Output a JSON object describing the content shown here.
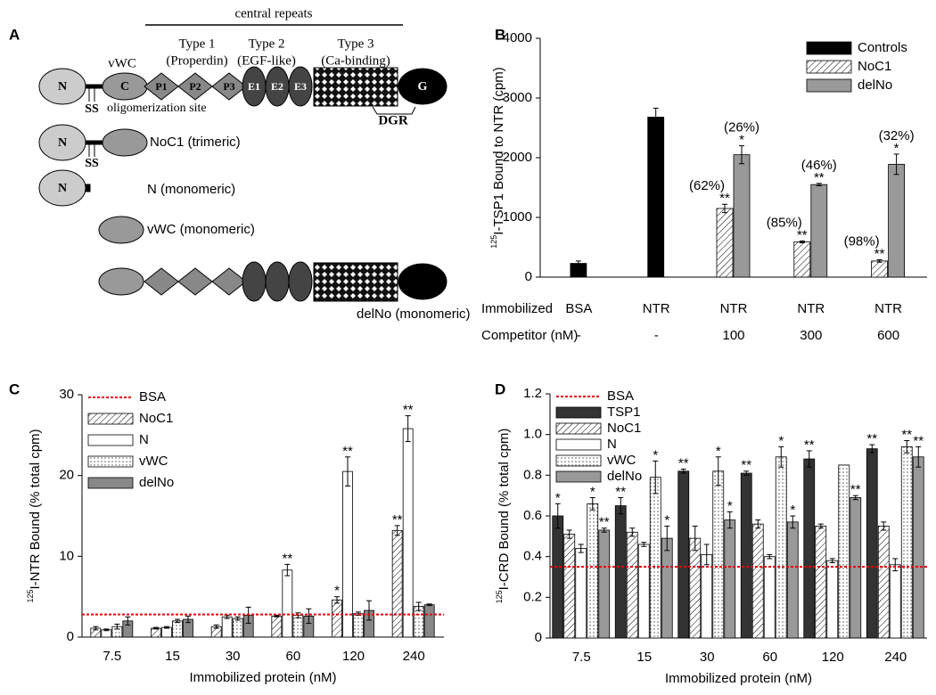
{
  "panels": {
    "a": "A",
    "b": "B",
    "c": "C",
    "d": "D"
  },
  "diagram": {
    "central_repeats": "central repeats",
    "vwc": "vWC",
    "type1": "Type 1",
    "type1_sub": "(Properdin)",
    "type2": "Type 2",
    "type2_sub": "(EGF-like)",
    "type3": "Type 3",
    "type3_sub": "(Ca-binding)",
    "domains": [
      "N",
      "C",
      "P1",
      "P2",
      "P3",
      "E1",
      "E2",
      "E3",
      "G"
    ],
    "ss": "SS",
    "oligomerization": "oligomerization site",
    "dgr": "DGR",
    "constructs": [
      "NoC1 (trimeric)",
      "N (monomeric)",
      "vWC (monomeric)",
      "delNo (monomeric)"
    ]
  },
  "chart_data": [
    {
      "type": "bar",
      "ylabel_sup": "125",
      "ylabel": "I-TSP1 Bound  to NTR (cpm)",
      "categories": [
        "BSA",
        "NTR",
        "NTR",
        "NTR",
        "NTR"
      ],
      "category_row_label": "Immobilized",
      "competitor_row_label": "Competitor (nM)",
      "competitor": [
        "-",
        "-",
        "100",
        "300",
        "600"
      ],
      "ylim": [
        0,
        4000
      ],
      "yticks": [
        0,
        1000,
        2000,
        3000,
        4000
      ],
      "legend": "upper right",
      "series": [
        {
          "name": "Controls",
          "color": "#000000",
          "pattern": "solid",
          "values": [
            230,
            2680,
            null,
            null,
            null
          ],
          "errors": [
            40,
            150,
            null,
            null,
            null
          ]
        },
        {
          "name": "NoC1",
          "color": "#ffffff",
          "pattern": "hatch",
          "values": [
            null,
            null,
            1150,
            590,
            270
          ],
          "errors": [
            null,
            null,
            70,
            15,
            20
          ],
          "significance": [
            null,
            null,
            "**",
            "**",
            "**"
          ],
          "percent_labels": [
            null,
            null,
            "(62%)",
            "(85%)",
            "(98%)"
          ]
        },
        {
          "name": "delNo",
          "color": "#999999",
          "pattern": "solid",
          "values": [
            null,
            null,
            2050,
            1550,
            1890
          ],
          "errors": [
            null,
            null,
            150,
            20,
            170
          ],
          "significance": [
            null,
            null,
            "*",
            "**",
            "*"
          ],
          "percent_labels": [
            null,
            null,
            "(26%)",
            "(46%)",
            "(32%)"
          ]
        }
      ]
    },
    {
      "type": "bar",
      "ylabel_sup": "125",
      "ylabel": "I-NTR Bound (% total cpm)",
      "xlabel": "Immobilized protein (nM)",
      "categories": [
        "7.5",
        "15",
        "30",
        "60",
        "120",
        "240"
      ],
      "ylim": [
        0,
        30
      ],
      "yticks": [
        0,
        10,
        20,
        30
      ],
      "legend": "upper left",
      "reference_line": {
        "name": "BSA",
        "value": 2.8,
        "color": "#e8000b"
      },
      "series": [
        {
          "name": "NoC1",
          "color": "#ffffff",
          "pattern": "hatch",
          "values": [
            1.1,
            1.1,
            1.3,
            2.6,
            4.6,
            13.2
          ],
          "errors": [
            0.2,
            0.1,
            0.2,
            0.1,
            0.4,
            0.6
          ],
          "significance": [
            null,
            null,
            null,
            null,
            "*",
            "**"
          ]
        },
        {
          "name": "N",
          "color": "#ffffff",
          "pattern": "solid",
          "values": [
            0.9,
            1.2,
            2.5,
            8.3,
            20.5,
            25.8
          ],
          "errors": [
            0.1,
            0.1,
            0.2,
            0.7,
            1.8,
            1.6
          ],
          "significance": [
            null,
            null,
            null,
            "**",
            "**",
            "**"
          ]
        },
        {
          "name": "vWC",
          "color": "#ffffff",
          "pattern": "dots",
          "values": [
            1.3,
            2.0,
            2.3,
            2.7,
            2.9,
            3.8
          ],
          "errors": [
            0.3,
            0.2,
            0.2,
            0.3,
            0.2,
            0.5
          ]
        },
        {
          "name": "delNo",
          "color": "#888888",
          "pattern": "solid",
          "values": [
            2.0,
            2.2,
            2.7,
            2.6,
            3.3,
            4.0
          ],
          "errors": [
            0.5,
            0.4,
            1.0,
            0.9,
            1.2,
            0.1
          ]
        }
      ]
    },
    {
      "type": "bar",
      "ylabel_sup": "125",
      "ylabel": "I-CRD Bound (% total cpm)",
      "xlabel": "Immobilized protein (nM)",
      "categories": [
        "7.5",
        "15",
        "30",
        "60",
        "120",
        "240"
      ],
      "ylim": [
        0,
        1.2
      ],
      "yticks": [
        0,
        0.2,
        0.4,
        0.6,
        0.8,
        {
          "value": 1,
          "label": "1.0"
        },
        1.2
      ],
      "legend": "upper left",
      "reference_line": {
        "name": "BSA",
        "value": 0.35,
        "color": "#e8000b"
      },
      "series": [
        {
          "name": "TSP1",
          "color": "#333333",
          "pattern": "solid",
          "values": [
            0.6,
            0.65,
            0.82,
            0.81,
            0.88,
            0.93
          ],
          "errors": [
            0.06,
            0.04,
            0.01,
            0.01,
            0.04,
            0.02
          ],
          "significance": [
            "*",
            "**",
            "**",
            "**",
            "**",
            "**"
          ]
        },
        {
          "name": "NoC1",
          "color": "#ffffff",
          "pattern": "hatch",
          "values": [
            0.51,
            0.52,
            0.49,
            0.56,
            0.55,
            0.55
          ],
          "errors": [
            0.02,
            0.02,
            0.06,
            0.02,
            0.01,
            0.02
          ]
        },
        {
          "name": "N",
          "color": "#ffffff",
          "pattern": "solid",
          "values": [
            0.44,
            0.46,
            0.41,
            0.4,
            0.38,
            0.36
          ],
          "errors": [
            0.02,
            0.01,
            0.05,
            0.01,
            0.01,
            0.03
          ]
        },
        {
          "name": "vWC",
          "color": "#ffffff",
          "pattern": "dots",
          "values": [
            0.66,
            0.79,
            0.82,
            0.89,
            0.85,
            0.94
          ],
          "errors": [
            0.03,
            0.08,
            0.07,
            0.05,
            null,
            0.03
          ],
          "significance": [
            "*",
            "*",
            "*",
            "*",
            null,
            "**"
          ]
        },
        {
          "name": "delNo",
          "color": "#999999",
          "pattern": "solid",
          "values": [
            0.53,
            0.49,
            0.58,
            0.57,
            0.69,
            0.89
          ],
          "errors": [
            0.01,
            0.06,
            0.04,
            0.03,
            0.01,
            0.05
          ],
          "significance": [
            "**",
            "*",
            "*",
            "*",
            "**",
            "**"
          ]
        }
      ]
    }
  ]
}
